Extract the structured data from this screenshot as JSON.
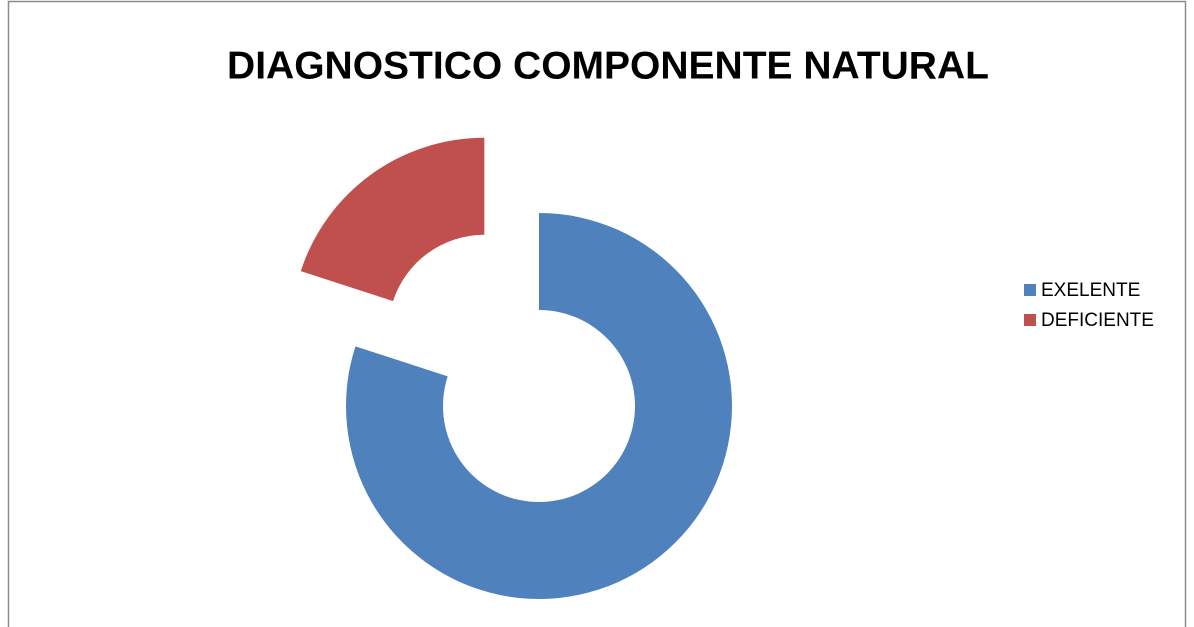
{
  "chart_data": {
    "type": "pie",
    "title": "DIAGNOSTICO COMPONENTE NATURAL",
    "donut": true,
    "categories": [
      "EXELENTE",
      "DEFICIENTE"
    ],
    "values": [
      80,
      20
    ],
    "colors": [
      "#4f81bd",
      "#c0504d"
    ],
    "explode": [
      false,
      true
    ],
    "legend": "right"
  }
}
